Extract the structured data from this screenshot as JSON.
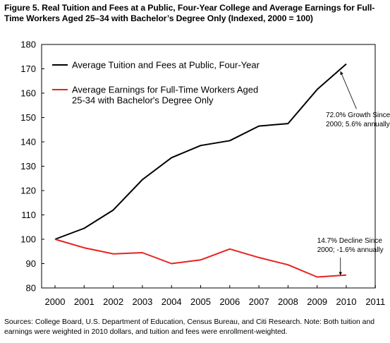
{
  "title_lines": [
    "Figure 5. Real Tuition and Fees at a Public, Four-Year College and Average Earnings for Full-",
    "Time Workers Aged 25–34 with Bachelor’s Degree Only (Indexed, 2000 = 100)"
  ],
  "source_lines": [
    "Sources: College Board, U.S. Department of Education, Census Bureau, and Citi Research. Note: Both tuition and",
    "earnings were weighted in 2010 dollars, and tuition and fees were enrollment-weighted."
  ],
  "chart_data": {
    "type": "line",
    "xlim": [
      2000,
      2011
    ],
    "ylim": [
      80,
      180
    ],
    "x_ticks": [
      2000,
      2001,
      2002,
      2003,
      2004,
      2005,
      2006,
      2007,
      2008,
      2009,
      2010,
      2011
    ],
    "y_ticks": [
      80,
      90,
      100,
      110,
      120,
      130,
      140,
      150,
      160,
      170,
      180
    ],
    "grid": false,
    "legend_position": "top-left",
    "series": [
      {
        "name": "Average Tuition and Fees at Public, Four-Year",
        "color": "#000000",
        "x": [
          2000,
          2001,
          2002,
          2003,
          2004,
          2005,
          2006,
          2007,
          2008,
          2009,
          2010
        ],
        "values": [
          100,
          104.5,
          112,
          124.5,
          133.5,
          138.5,
          140.5,
          146.5,
          147.5,
          161.5,
          172
        ]
      },
      {
        "name_lines": [
          "Average Earnings for Full-Time Workers Aged",
          "25-34 with Bachelor's Degree Only"
        ],
        "color": "#e8211f",
        "x": [
          2000,
          2001,
          2002,
          2003,
          2004,
          2005,
          2006,
          2007,
          2008,
          2009,
          2010
        ],
        "values": [
          100,
          96.5,
          94,
          94.5,
          90,
          91.5,
          96,
          92.5,
          89.5,
          84.5,
          85.3
        ]
      }
    ],
    "annotations": [
      {
        "lines": [
          "72.0% Growth Since",
          "2000; 5.6% annually"
        ],
        "text_at": [
          2009.3,
          150.2
        ],
        "arrow_from": [
          2010.35,
          153.5
        ],
        "arrow_to": [
          2009.8,
          169
        ]
      },
      {
        "lines": [
          "14.7% Decline Since",
          "2000; -1.6% annually"
        ],
        "text_at": [
          2009.0,
          98.5
        ],
        "arrow_from": [
          2009.8,
          92.5
        ],
        "arrow_to": [
          2009.8,
          85.2
        ]
      }
    ]
  }
}
